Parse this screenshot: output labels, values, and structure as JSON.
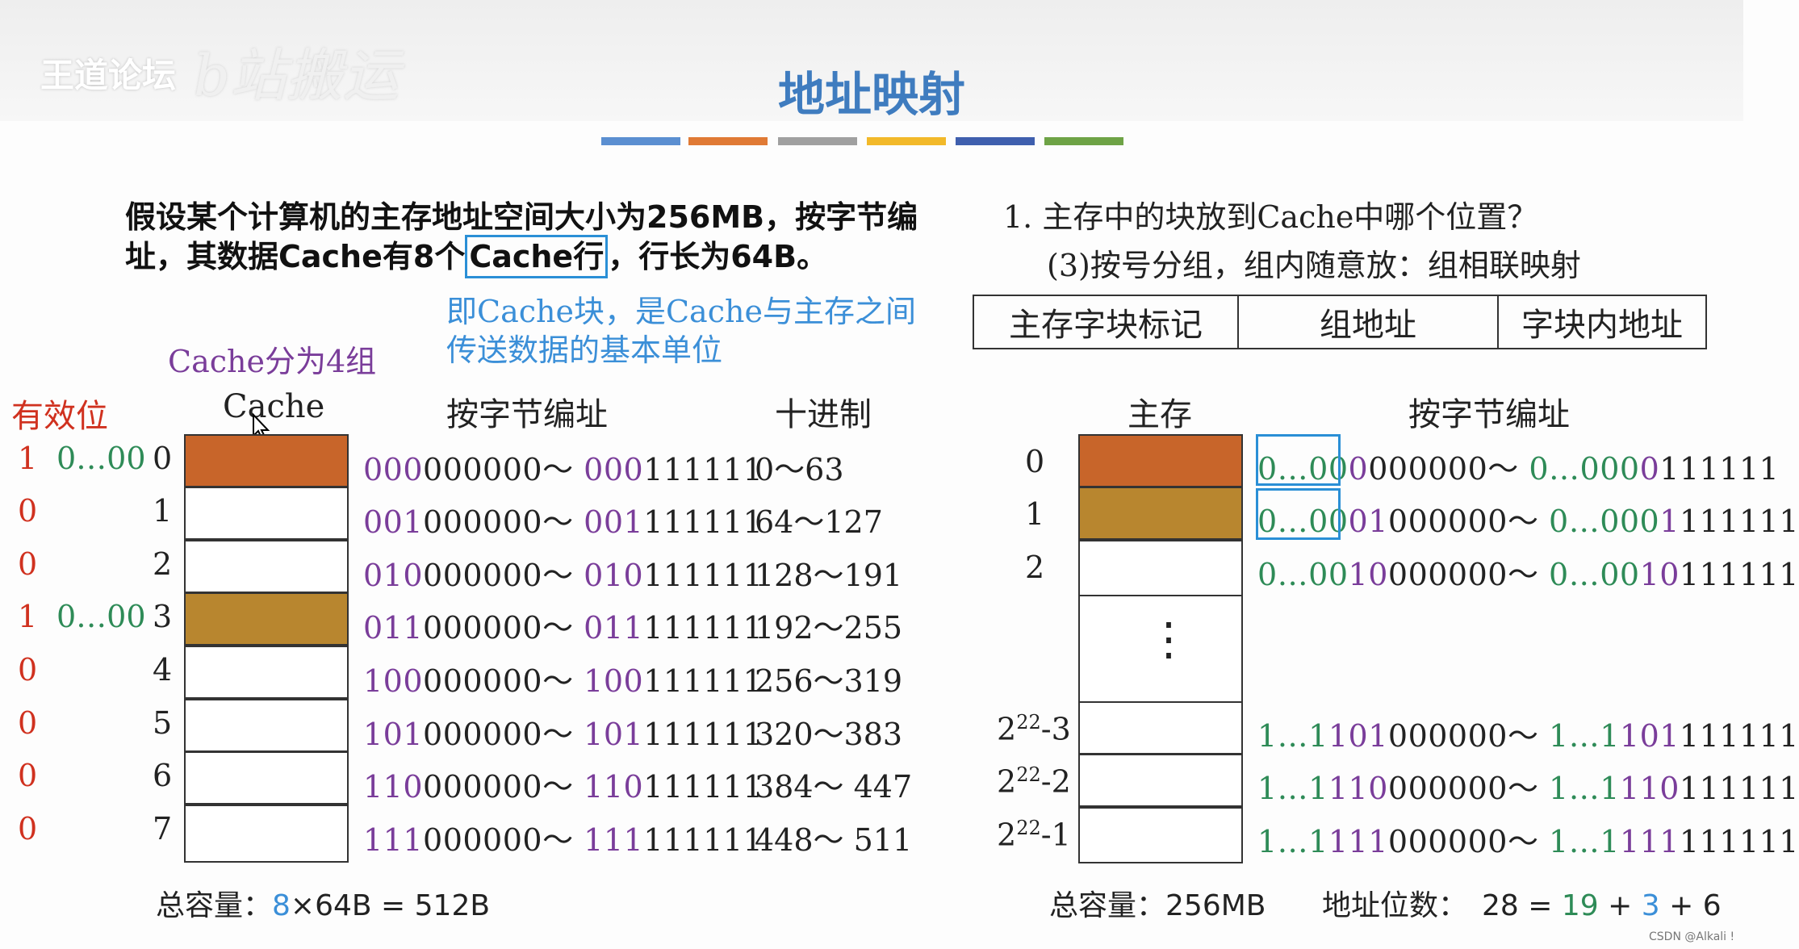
{
  "watermark": {
    "logo": "王道论坛",
    "logo2": "b站搬运"
  },
  "title": "地址映射",
  "color_bars": [
    "#5b8fd1",
    "#e07a35",
    "#a0a0a0",
    "#f2b92a",
    "#3f5fae",
    "#6ea346"
  ],
  "problem": {
    "line1": "假设某个计算机的主存地址空间大小为256MB，按字节编",
    "line2a": "址，其数据Cache有8个",
    "line2b": "Cache行",
    "line2c": "，行长为64B。"
  },
  "note": {
    "line1": "即Cache块，是Cache与主存之间",
    "line2": "传送数据的基本单位"
  },
  "cache_groups": "Cache分为4组",
  "question": {
    "q1": "1. 主存中的块放到Cache中哪个位置？",
    "q2": "(3)按号分组，组内随意放：组相联映射"
  },
  "fields": [
    "主存字块标记",
    "组地址",
    "字块内地址"
  ],
  "left_headers": {
    "valid": "有效位",
    "cache": "Cache",
    "addr": "按字节编址",
    "decimal": "十进制"
  },
  "right_headers": {
    "mem": "主存",
    "addr": "按字节编址"
  },
  "cache_rows": [
    {
      "valid": "1",
      "tag": "0…00",
      "idx": "0",
      "p1": "000",
      "r1": "000000～ ",
      "p2": "000",
      "r2": "111111",
      "dec": "0～63",
      "fill": "#c8652a"
    },
    {
      "valid": "0",
      "tag": "",
      "idx": "1",
      "p1": "001",
      "r1": "000000～ ",
      "p2": "001",
      "r2": "111111",
      "dec": "64～127",
      "fill": "#ffffff"
    },
    {
      "valid": "0",
      "tag": "",
      "idx": "2",
      "p1": "010",
      "r1": "000000～ ",
      "p2": "010",
      "r2": "111111",
      "dec": "128～191",
      "fill": "#ffffff"
    },
    {
      "valid": "1",
      "tag": "0…00",
      "idx": "3",
      "p1": "011",
      "r1": "000000～ ",
      "p2": "011",
      "r2": "111111",
      "dec": "192～255",
      "fill": "#b8862f"
    },
    {
      "valid": "0",
      "tag": "",
      "idx": "4",
      "p1": "100",
      "r1": "000000～ ",
      "p2": "100",
      "r2": "111111",
      "dec": "256～319",
      "fill": "#ffffff"
    },
    {
      "valid": "0",
      "tag": "",
      "idx": "5",
      "p1": "101",
      "r1": "000000～ ",
      "p2": "101",
      "r2": "111111",
      "dec": "320～383",
      "fill": "#ffffff"
    },
    {
      "valid": "0",
      "tag": "",
      "idx": "6",
      "p1": "110",
      "r1": "000000～ ",
      "p2": "110",
      "r2": "111111",
      "dec": "384～ 447",
      "fill": "#ffffff"
    },
    {
      "valid": "0",
      "tag": "",
      "idx": "7",
      "p1": "111",
      "r1": "000000～ ",
      "p2": "111",
      "r2": "111111",
      "dec": "448～ 511",
      "fill": "#ffffff"
    }
  ],
  "mem_rows": [
    {
      "idx": "0",
      "sup": "",
      "suffix": "",
      "g1": "0…00",
      "m1": "0",
      "r1": "000000～ ",
      "g2": "0…000",
      "m2": "0",
      "r2": "111111",
      "fill": "#c8652a"
    },
    {
      "idx": "1",
      "sup": "",
      "suffix": "",
      "g1": "0…00",
      "m1": "01",
      "r1": "000000～ ",
      "g2": "0…000",
      "m2": "1",
      "r2": "111111",
      "fill": "#b8862f"
    },
    {
      "idx": "2",
      "sup": "",
      "suffix": "",
      "g1": "0…00",
      "m1": "10",
      "r1": "000000～ ",
      "g2": "0…00",
      "m2": "10",
      "r2": "111111",
      "fill": "#ffffff"
    },
    {
      "idx": "2",
      "sup": "22",
      "suffix": "-3",
      "g1": "1…1",
      "m1": "101",
      "r1": "000000～ ",
      "g2": "1…1",
      "m2": "101",
      "r2": "111111",
      "fill": "#ffffff"
    },
    {
      "idx": "2",
      "sup": "22",
      "suffix": "-2",
      "g1": "1…1",
      "m1": "110",
      "r1": "000000～ ",
      "g2": "1…1",
      "m2": "110",
      "r2": "111111",
      "fill": "#ffffff"
    },
    {
      "idx": "2",
      "sup": "22",
      "suffix": "-1",
      "g1": "1…1",
      "m1": "111",
      "r1": "000000～ ",
      "g2": "1…1",
      "m2": "111",
      "r2": "111111",
      "fill": "#ffffff"
    }
  ],
  "ellipsis": "⋮",
  "totals": {
    "left_label": "总容量：",
    "left_8": "8",
    "left_rest": "×64B = 512B",
    "right_label": "总容量：",
    "right_val": "256MB",
    "bits_label": "地址位数：",
    "bits_a": "28 = ",
    "bits_b": "19",
    "bits_p1": " + ",
    "bits_c": "3",
    "bits_p2": " + 6"
  },
  "credit": "CSDN @Alkali !"
}
